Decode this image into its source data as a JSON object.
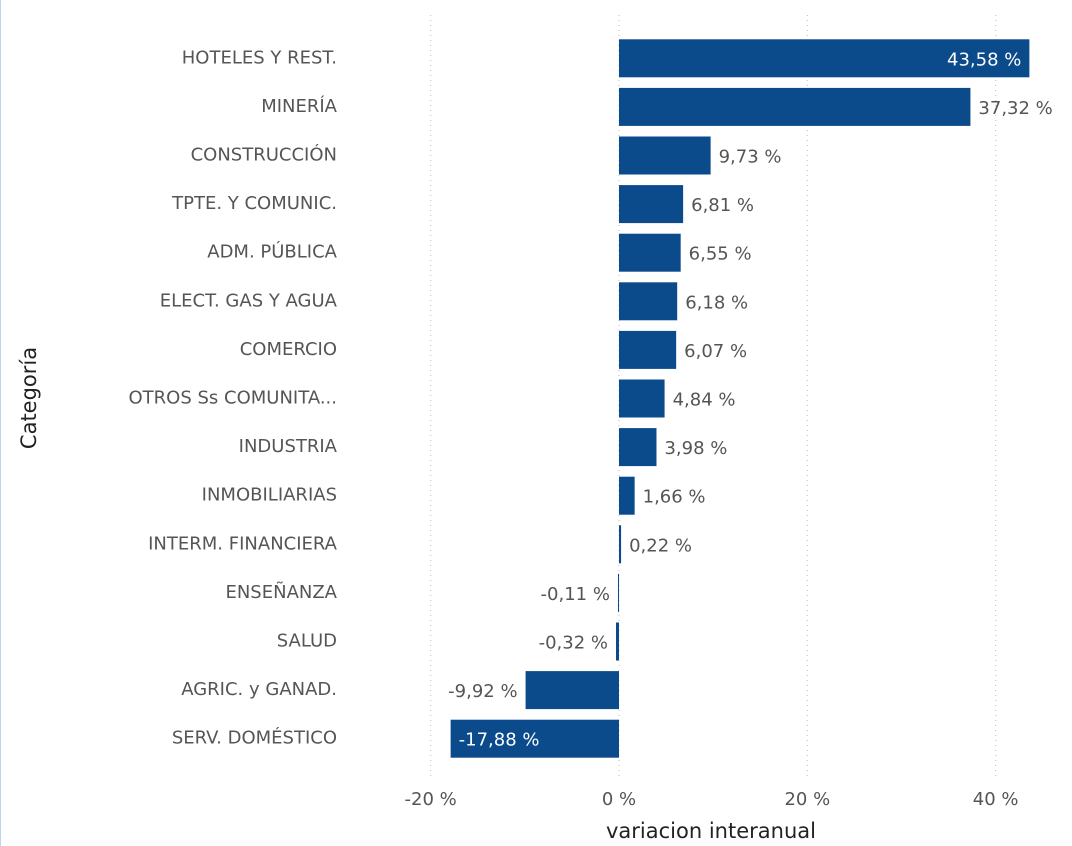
{
  "chart_data": {
    "type": "hbar",
    "y_label": "Categoría",
    "x_label": "variacion interanual",
    "categories": [
      "HOTELES Y REST.",
      "MINERÍA",
      "CONSTRUCCIÓN",
      "TPTE. Y COMUNIC.",
      "ADM. PÚBLICA",
      "ELECT. GAS Y AGUA",
      "COMERCIO",
      "OTROS Ss COMUNITA...",
      "INDUSTRIA",
      "INMOBILIARIAS",
      "INTERM. FINANCIERA",
      "ENSEÑANZA",
      "SALUD",
      "AGRIC. y GANAD.",
      "SERV. DOMÉSTICO"
    ],
    "values": [
      43.58,
      37.32,
      9.73,
      6.81,
      6.55,
      6.18,
      6.07,
      4.84,
      3.98,
      1.66,
      0.22,
      -0.11,
      -0.32,
      -9.92,
      -17.88
    ],
    "value_labels": [
      "43,58 %",
      "37,32 %",
      "9,73 %",
      "6,81 %",
      "6,55 %",
      "6,18 %",
      "6,07 %",
      "4,84 %",
      "3,98 %",
      "1,66 %",
      "0,22 %",
      "-0,11 %",
      "-0,32 %",
      "-9,92 %",
      "-17,88 %"
    ],
    "color": "#0b4a8b",
    "xlim": [
      -24,
      48
    ],
    "xticks": [
      {
        "value": -20,
        "label": "-20 %"
      },
      {
        "value": 0,
        "label": "0 %"
      },
      {
        "value": 20,
        "label": "20 %"
      },
      {
        "value": 40,
        "label": "40 %"
      }
    ],
    "grid": true
  }
}
